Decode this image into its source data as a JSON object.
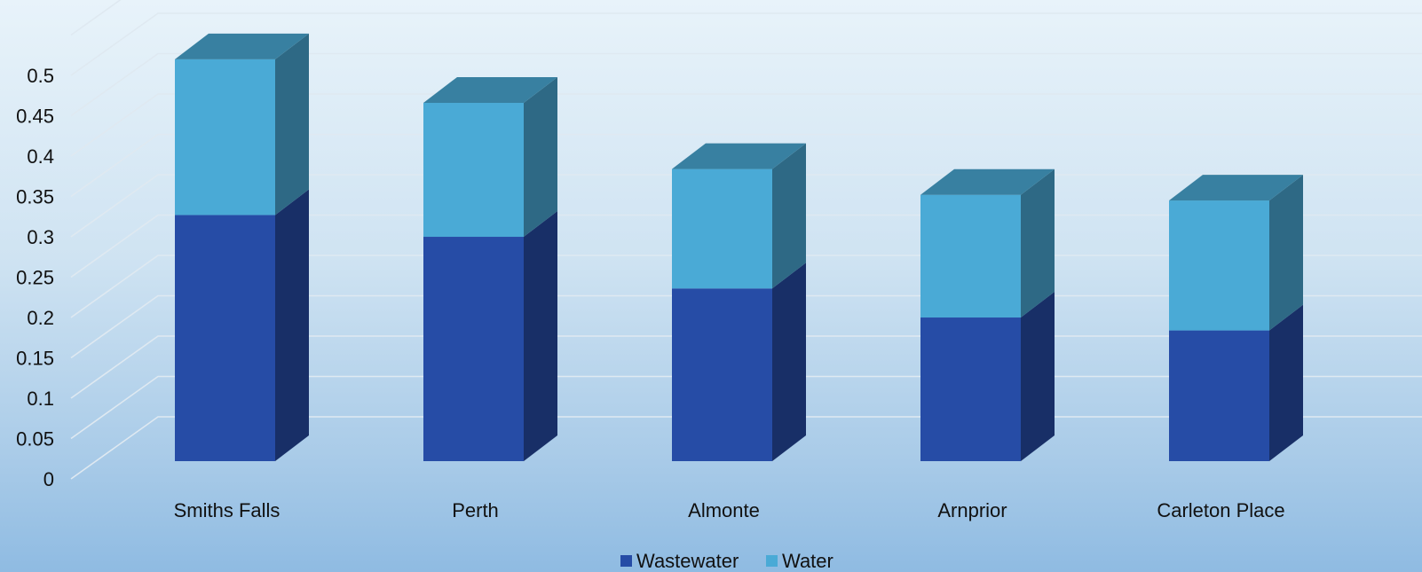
{
  "chart_data": {
    "type": "bar",
    "stacked": true,
    "categories": [
      "Smiths Falls",
      "Perth",
      "Almonte",
      "Arnprior",
      "Carleton Place"
    ],
    "series": [
      {
        "name": "Wastewater",
        "values": [
          0.305,
          0.278,
          0.214,
          0.178,
          0.162
        ],
        "color": "#264ca6"
      },
      {
        "name": "Water",
        "values": [
          0.193,
          0.166,
          0.148,
          0.152,
          0.161
        ],
        "color": "#4aaad6"
      }
    ],
    "yticks": [
      "0",
      "0.05",
      "0.1",
      "0.15",
      "0.2",
      "0.25",
      "0.3",
      "0.35",
      "0.4",
      "0.45",
      "0.5"
    ],
    "ylim": [
      0,
      0.5
    ],
    "grid": true,
    "legend_position": "bottom",
    "title": "",
    "xlabel": "",
    "ylabel": ""
  }
}
